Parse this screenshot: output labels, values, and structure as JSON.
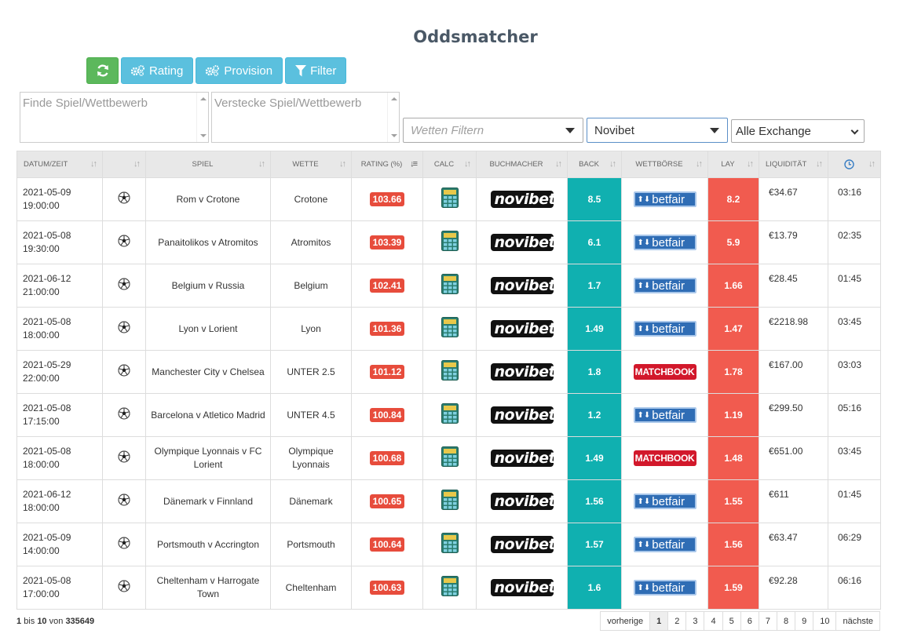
{
  "page": {
    "title": "Oddsmatcher"
  },
  "toolbar": {
    "refresh_icon": "refresh-icon",
    "rating_label": "Rating",
    "provision_label": "Provision",
    "filter_label": "Filter"
  },
  "search": {
    "find_placeholder": "Finde Spiel/Wettbewerb",
    "hide_placeholder": "Verstecke Spiel/Wettbewerb"
  },
  "filters": {
    "bets_placeholder": "Wetten Filtern",
    "bookmaker": "Novibet",
    "exchange": "Alle Exchange"
  },
  "table": {
    "headers": [
      "DATUM/ZEIT",
      "",
      "SPIEL",
      "WETTE",
      "RATING (%)",
      "CALC",
      "BUCHMACHER",
      "BACK",
      "WETTBÖRSE",
      "LAY",
      "LIQUIDITÄT",
      ""
    ],
    "rows": [
      {
        "date": "2021-05-09",
        "time": "19:00:00",
        "game": "Rom v Crotone",
        "bet": "Crotone",
        "rating": "103.66",
        "bookmaker": "novibet",
        "back": "8.5",
        "exchange": "betfair",
        "lay": "8.2",
        "liquidity": "€34.67",
        "countdown": "03:16"
      },
      {
        "date": "2021-05-08",
        "time": "19:30:00",
        "game": "Panaitolikos v Atromitos",
        "bet": "Atromitos",
        "rating": "103.39",
        "bookmaker": "novibet",
        "back": "6.1",
        "exchange": "betfair",
        "lay": "5.9",
        "liquidity": "€13.79",
        "countdown": "02:35"
      },
      {
        "date": "2021-06-12",
        "time": "21:00:00",
        "game": "Belgium v Russia",
        "bet": "Belgium",
        "rating": "102.41",
        "bookmaker": "novibet",
        "back": "1.7",
        "exchange": "betfair",
        "lay": "1.66",
        "liquidity": "€28.45",
        "countdown": "01:45"
      },
      {
        "date": "2021-05-08",
        "time": "18:00:00",
        "game": "Lyon v Lorient",
        "bet": "Lyon",
        "rating": "101.36",
        "bookmaker": "novibet",
        "back": "1.49",
        "exchange": "betfair",
        "lay": "1.47",
        "liquidity": "€2218.98",
        "countdown": "03:45"
      },
      {
        "date": "2021-05-29",
        "time": "22:00:00",
        "game": "Manchester City v Chelsea",
        "bet": "UNTER 2.5",
        "rating": "101.12",
        "bookmaker": "novibet",
        "back": "1.8",
        "exchange": "MATCHBOOK",
        "lay": "1.78",
        "liquidity": "€167.00",
        "countdown": "03:03"
      },
      {
        "date": "2021-05-08",
        "time": "17:15:00",
        "game": "Barcelona v Atletico Madrid",
        "bet": "UNTER 4.5",
        "rating": "100.84",
        "bookmaker": "novibet",
        "back": "1.2",
        "exchange": "betfair",
        "lay": "1.19",
        "liquidity": "€299.50",
        "countdown": "05:16"
      },
      {
        "date": "2021-05-08",
        "time": "18:00:00",
        "game": "Olympique Lyonnais v FC Lorient",
        "bet": "Olympique Lyonnais",
        "rating": "100.68",
        "bookmaker": "novibet",
        "back": "1.49",
        "exchange": "MATCHBOOK",
        "lay": "1.48",
        "liquidity": "€651.00",
        "countdown": "03:45"
      },
      {
        "date": "2021-06-12",
        "time": "18:00:00",
        "game": "Dänemark v Finnland",
        "bet": "Dänemark",
        "rating": "100.65",
        "bookmaker": "novibet",
        "back": "1.56",
        "exchange": "betfair",
        "lay": "1.55",
        "liquidity": "€611",
        "countdown": "01:45"
      },
      {
        "date": "2021-05-09",
        "time": "14:00:00",
        "game": "Portsmouth v Accrington",
        "bet": "Portsmouth",
        "rating": "100.64",
        "bookmaker": "novibet",
        "back": "1.57",
        "exchange": "betfair",
        "lay": "1.56",
        "liquidity": "€63.47",
        "countdown": "06:29"
      },
      {
        "date": "2021-05-08",
        "time": "17:00:00",
        "game": "Cheltenham v Harrogate Town",
        "bet": "Cheltenham",
        "rating": "100.63",
        "bookmaker": "novibet",
        "back": "1.6",
        "exchange": "betfair",
        "lay": "1.59",
        "liquidity": "€92.28",
        "countdown": "06:16"
      }
    ]
  },
  "footer": {
    "from": "1",
    "bis": "bis",
    "to": "10",
    "von": "von",
    "total": "335649",
    "prev_label": "vorherige",
    "next_label": "nächste",
    "pages": [
      "1",
      "2",
      "3",
      "4",
      "5",
      "6",
      "7",
      "8",
      "9",
      "10"
    ],
    "current_page": "1"
  },
  "colors": {
    "back": "#10b0b0",
    "lay": "#f15b4f",
    "rating": "#e74c3c",
    "info_button": "#5bc0de",
    "refresh_button": "#5cb85c"
  }
}
